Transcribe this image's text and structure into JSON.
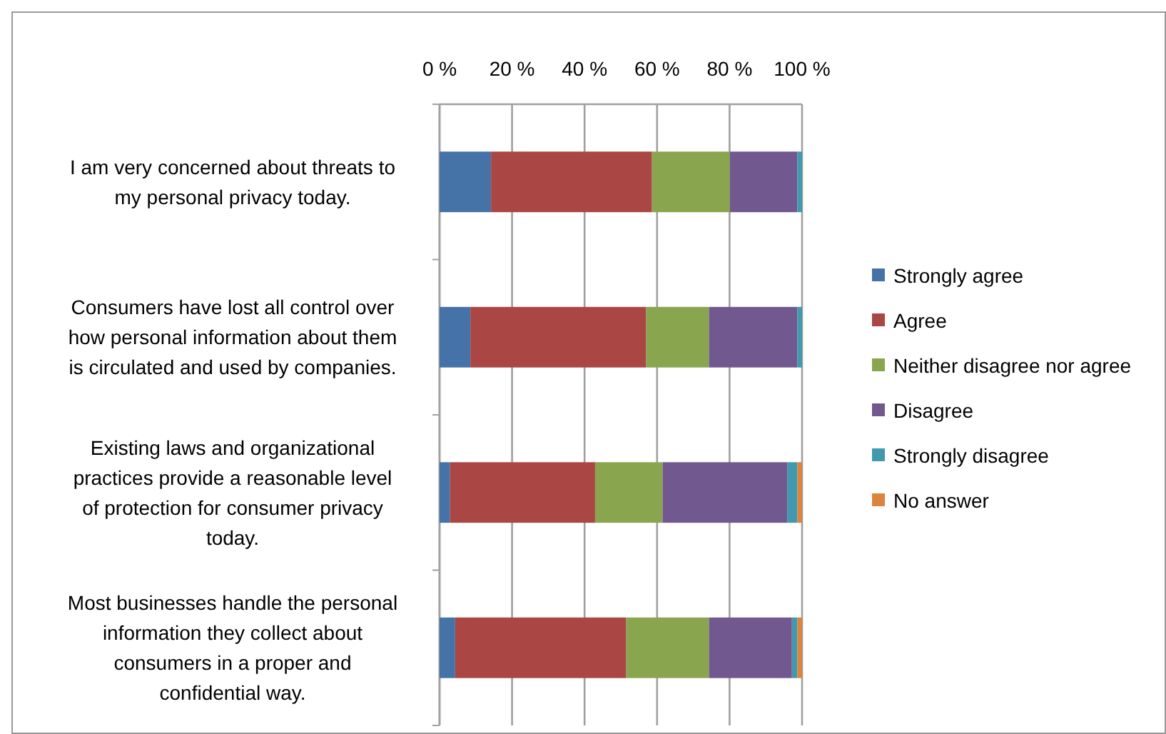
{
  "chart_data": {
    "type": "bar",
    "orientation": "horizontal",
    "stacked": true,
    "categories": [
      "I am very concerned about threats to my personal privacy today.",
      "Consumers have lost all control over how personal information about them is circulated and used by companies.",
      "Existing laws and organizational practices provide a reasonable level of protection for consumer privacy today.",
      "Most businesses handle the personal information they collect about consumers in a proper and confidential way."
    ],
    "series": [
      {
        "name": "Strongly agree",
        "color": "#4572a7",
        "values": [
          14.2,
          8.5,
          2.9,
          4.3
        ]
      },
      {
        "name": "Agree",
        "color": "#aa4643",
        "values": [
          44.4,
          48.5,
          40.0,
          47.2
        ]
      },
      {
        "name": "Neither disagree nor agree",
        "color": "#89a54e",
        "values": [
          21.5,
          17.3,
          18.6,
          22.8
        ]
      },
      {
        "name": "Disagree",
        "color": "#71588f",
        "values": [
          18.6,
          24.4,
          34.4,
          22.9
        ]
      },
      {
        "name": "Strongly disagree",
        "color": "#4198af",
        "values": [
          1.3,
          1.3,
          2.8,
          1.5
        ]
      },
      {
        "name": "No answer",
        "color": "#db843d",
        "values": [
          0,
          0,
          1.3,
          1.3
        ]
      }
    ],
    "xlim": [
      0,
      100
    ],
    "xticks": [
      {
        "value": 0,
        "label": "0 %"
      },
      {
        "value": 20,
        "label": "20 %"
      },
      {
        "value": 40,
        "label": "40 %"
      },
      {
        "value": 60,
        "label": "60 %"
      },
      {
        "value": 80,
        "label": "80 %"
      },
      {
        "value": 100,
        "label": "100 %"
      }
    ],
    "grid": "x",
    "legend": "right"
  }
}
